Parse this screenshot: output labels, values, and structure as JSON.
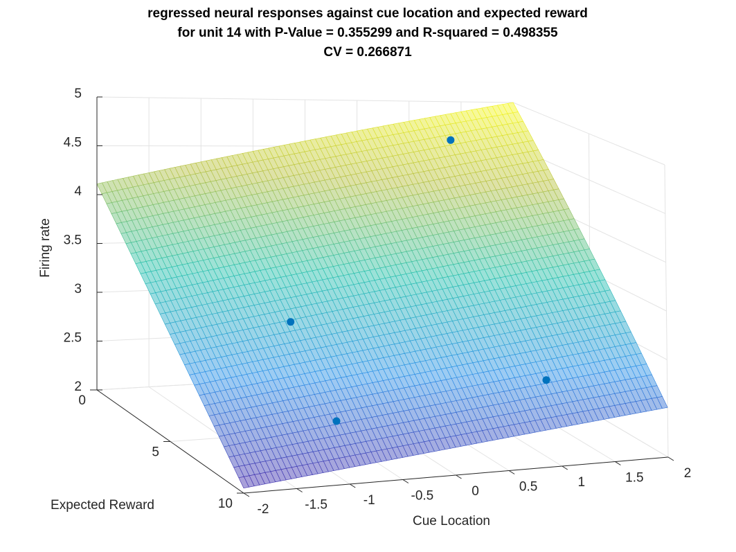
{
  "chart_data": {
    "type": "surface",
    "title": [
      "regressed neural responses against cue location and expected reward",
      "for unit 14 with P-Value = 0.355299 and R-squared = 0.498355",
      "CV = 0.266871"
    ],
    "xlabel": "Cue Location",
    "ylabel": "Expected Reward",
    "zlabel": "Firing rate",
    "xlim": [
      -2,
      2
    ],
    "xticks": [
      -2,
      -1.5,
      -1,
      -0.5,
      0,
      0.5,
      1,
      1.5,
      2
    ],
    "ylim": [
      0,
      10
    ],
    "yticks": [
      0,
      5,
      10
    ],
    "zlim": [
      2,
      5
    ],
    "zticks": [
      2,
      2.5,
      3,
      3.5,
      4,
      4.5,
      5
    ],
    "grid": true,
    "colormap": "parula",
    "surface": {
      "x": [
        -2,
        2
      ],
      "y": [
        0,
        10
      ],
      "z": [
        [
          4.11,
          5.0
        ],
        [
          2.05,
          2.51
        ]
      ]
    },
    "points": {
      "color": "#0072bd",
      "x": [
        1.4,
        -0.85,
        -1.12,
        1.58
      ],
      "y": [
        0,
        5,
        10,
        5
      ],
      "z": [
        4.57,
        3.14,
        2.64,
        2.37
      ]
    }
  }
}
